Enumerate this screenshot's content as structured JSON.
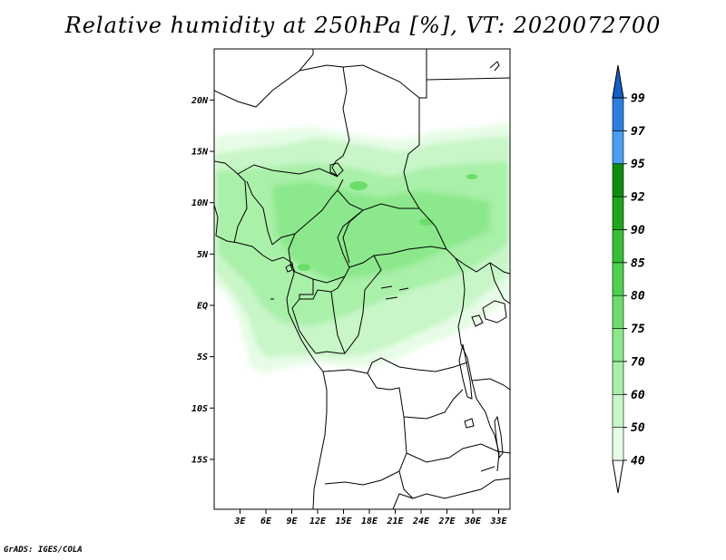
{
  "title": "Relative humidity at 250hPa [%], VT: 2020072700",
  "credit": "GrADS: IGES/COLA",
  "lat_labels": [
    {
      "value": 20,
      "label": "20N"
    },
    {
      "value": 15,
      "label": "15N"
    },
    {
      "value": 10,
      "label": "10N"
    },
    {
      "value": 5,
      "label": "5N"
    },
    {
      "value": 0,
      "label": "EQ"
    },
    {
      "value": -5,
      "label": "5S"
    },
    {
      "value": -10,
      "label": "10S"
    },
    {
      "value": -15,
      "label": "15S"
    }
  ],
  "lon_labels": [
    {
      "value": 3,
      "label": "3E"
    },
    {
      "value": 6,
      "label": "6E"
    },
    {
      "value": 9,
      "label": "9E"
    },
    {
      "value": 12,
      "label": "12E"
    },
    {
      "value": 15,
      "label": "15E"
    },
    {
      "value": 18,
      "label": "18E"
    },
    {
      "value": 21,
      "label": "21E"
    },
    {
      "value": 24,
      "label": "24E"
    },
    {
      "value": 27,
      "label": "27E"
    },
    {
      "value": 30,
      "label": "30E"
    },
    {
      "value": 33,
      "label": "33E"
    }
  ],
  "colorbar": {
    "levels": [
      "40",
      "50",
      "60",
      "70",
      "75",
      "80",
      "85",
      "90",
      "92",
      "95",
      "97",
      "99"
    ],
    "colors": [
      "#ffffff",
      "#e6fce6",
      "#c8f6c8",
      "#a9f0a9",
      "#8ce88c",
      "#6cdd6c",
      "#4fd04f",
      "#36bf36",
      "#1ea51e",
      "#0e8c0e",
      "#4a9ff0",
      "#2a7fe0",
      "#1460c8"
    ]
  }
}
